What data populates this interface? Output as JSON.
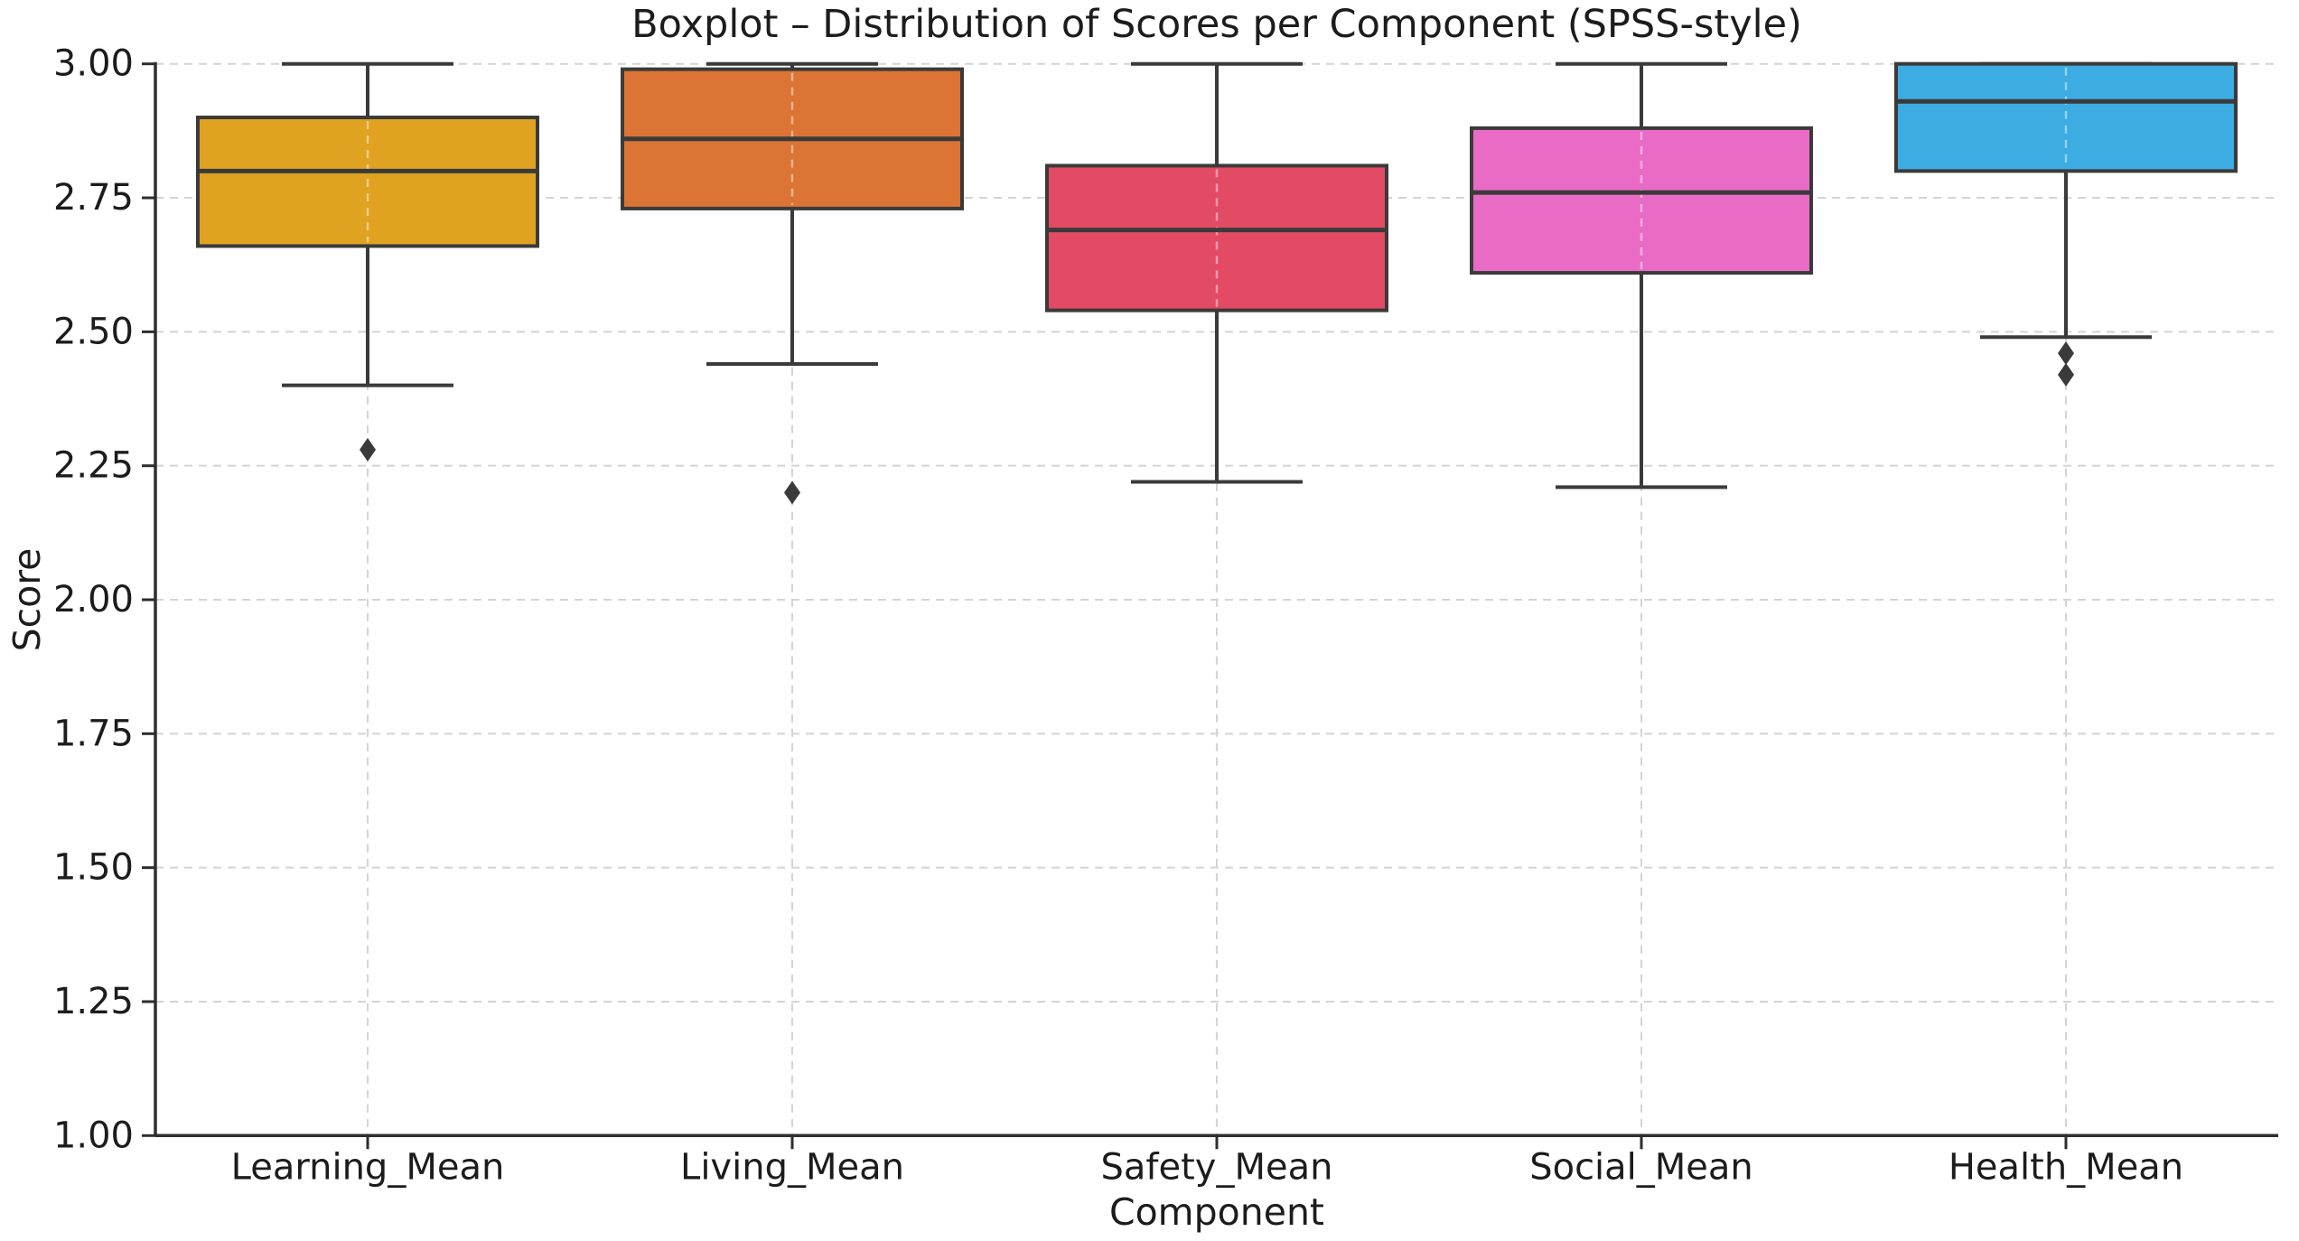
{
  "title": "Boxplot – Distribution of Scores per Component (SPSS-style)",
  "xlabel": "Component",
  "ylabel": "Score",
  "chart_data": {
    "type": "boxplot",
    "title": "Boxplot – Distribution of Scores per Component (SPSS-style)",
    "xlabel": "Component",
    "ylabel": "Score",
    "categories": [
      "Learning_Mean",
      "Living_Mean",
      "Safety_Mean",
      "Social_Mean",
      "Health_Mean"
    ],
    "series": [
      {
        "name": "Learning_Mean",
        "color": "#DFA321",
        "whisker_low": 2.4,
        "q1": 2.66,
        "median": 2.8,
        "q3": 2.9,
        "whisker_high": 3.0,
        "outliers": [
          2.28
        ]
      },
      {
        "name": "Living_Mean",
        "color": "#DB7434",
        "whisker_low": 2.44,
        "q1": 2.73,
        "median": 2.86,
        "q3": 2.99,
        "whisker_high": 3.0,
        "outliers": [
          2.2
        ]
      },
      {
        "name": "Safety_Mean",
        "color": "#E34A64",
        "whisker_low": 2.22,
        "q1": 2.54,
        "median": 2.69,
        "q3": 2.81,
        "whisker_high": 3.0,
        "outliers": []
      },
      {
        "name": "Social_Mean",
        "color": "#E96BC6",
        "whisker_low": 2.21,
        "q1": 2.61,
        "median": 2.76,
        "q3": 2.88,
        "whisker_high": 3.0,
        "outliers": []
      },
      {
        "name": "Health_Mean",
        "color": "#3CACE2",
        "whisker_low": 2.49,
        "q1": 2.8,
        "median": 2.93,
        "q3": 3.0,
        "whisker_high": 3.0,
        "outliers": [
          2.46,
          2.42
        ]
      }
    ],
    "ylim": [
      1.0,
      3.0
    ],
    "yticks": [
      3.0,
      2.75,
      2.5,
      2.25,
      2.0,
      1.75,
      1.5,
      1.25,
      1.0
    ],
    "ytick_labels": [
      "3.00",
      "2.75",
      "2.50",
      "2.25",
      "2.00",
      "1.75",
      "1.50",
      "1.25",
      "1.00"
    ],
    "grid": "dashed horizontal and vertical, light gray, grid under data with light dashes visible across boxes",
    "legend": "none",
    "styles": {
      "grid_color": "#d4d4d4",
      "spine_color": "#2e2e2e",
      "box_edge_color": "#3a3a3a",
      "whisker_color": "#3a3a3a",
      "outlier_color": "#3a3a3a",
      "text_color": "#1c1c1c",
      "background": "#ffffff",
      "outlier_marker": "diamond"
    }
  }
}
